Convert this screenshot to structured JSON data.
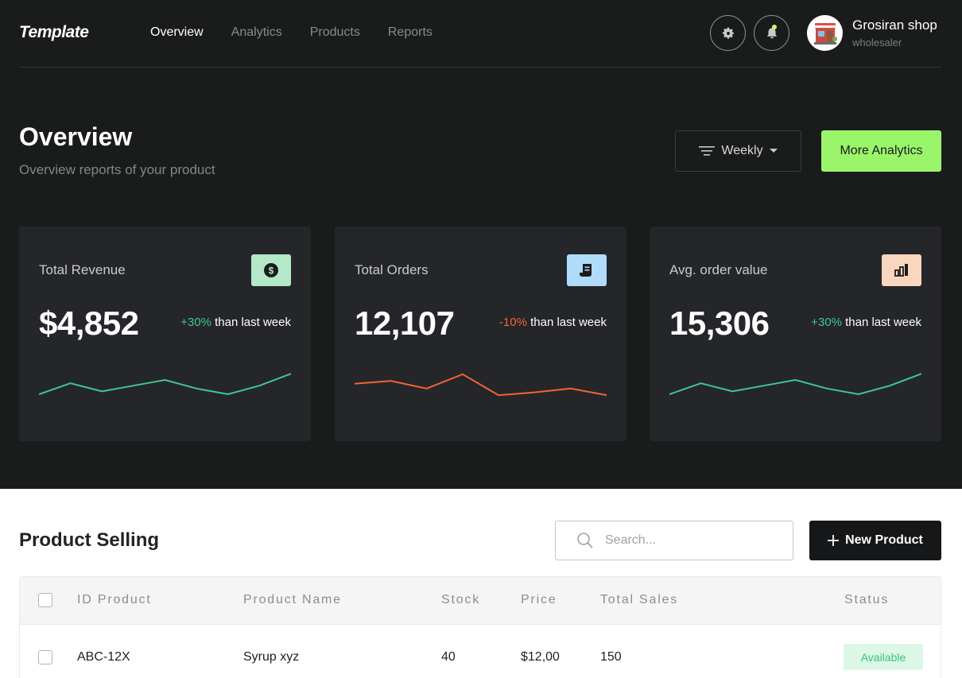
{
  "app": {
    "logo": "Template"
  },
  "nav": {
    "items": [
      {
        "label": "Overview",
        "active": true
      },
      {
        "label": "Analytics",
        "active": false
      },
      {
        "label": "Products",
        "active": false
      },
      {
        "label": "Reports",
        "active": false
      }
    ]
  },
  "user": {
    "name": "Grosiran shop",
    "role": "wholesaler"
  },
  "overview": {
    "title": "Overview",
    "subtitle": "Overview reports of your product",
    "period_label": "Weekly",
    "more_label": "More Analytics"
  },
  "cards": [
    {
      "label": "Total Revenue",
      "value": "$4,852",
      "change": "+30%",
      "change_suffix": " than last week",
      "trend": "up",
      "color": "#3ec88e",
      "icon_bg": "#b3e8c8",
      "icon": "dollar-icon",
      "spark": [
        40,
        63,
        46,
        58,
        70,
        52,
        40,
        58,
        83
      ]
    },
    {
      "label": "Total Orders",
      "value": "12,107",
      "change": "-10%",
      "change_suffix": " than last week",
      "trend": "down",
      "color": "#f26432",
      "icon_bg": "#b1dbfb",
      "icon": "receipt-icon",
      "spark": [
        62,
        68,
        52,
        82,
        38,
        44,
        52,
        38
      ]
    },
    {
      "label": "Avg. order value",
      "value": "15,306",
      "change": "+30%",
      "change_suffix": " than last week",
      "trend": "up",
      "color": "#3ec88e",
      "icon_bg": "#f9d6bd",
      "icon": "bar-chart-icon",
      "spark": [
        40,
        63,
        46,
        58,
        70,
        52,
        40,
        58,
        83
      ]
    }
  ],
  "product_selling": {
    "title": "Product Selling",
    "search_placeholder": "Search...",
    "new_label": "New Product",
    "columns": [
      "ID Product",
      "Product Name",
      "Stock",
      "Price",
      "Total Sales",
      "Status"
    ],
    "rows": [
      {
        "id": "ABC-12X",
        "name": "Syrup xyz",
        "stock": "40",
        "price": "$12,00",
        "sales": "150",
        "status": "Available"
      }
    ]
  }
}
